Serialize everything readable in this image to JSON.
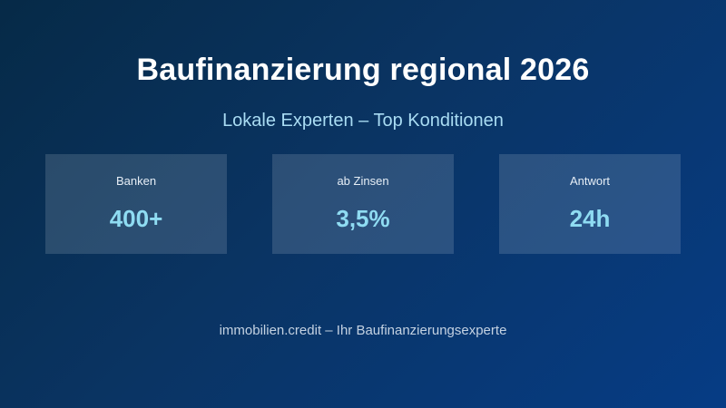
{
  "headline": {
    "title": "Baufinanzierung regional 2026",
    "subtitle": "Lokale Experten – Top Konditionen"
  },
  "stats": [
    {
      "label": "Banken",
      "value": "400+"
    },
    {
      "label": "ab Zinsen",
      "value": "3,5%"
    },
    {
      "label": "Antwort",
      "value": "24h"
    }
  ],
  "footer": {
    "text": "immobilien.credit – Ihr Baufinanzierungsexperte"
  },
  "colors": {
    "background_start": "#062a47",
    "background_end": "#063c85",
    "title": "#ffffff",
    "subtitle": "#a9dcf3",
    "stat_value": "#8fdcf2"
  }
}
